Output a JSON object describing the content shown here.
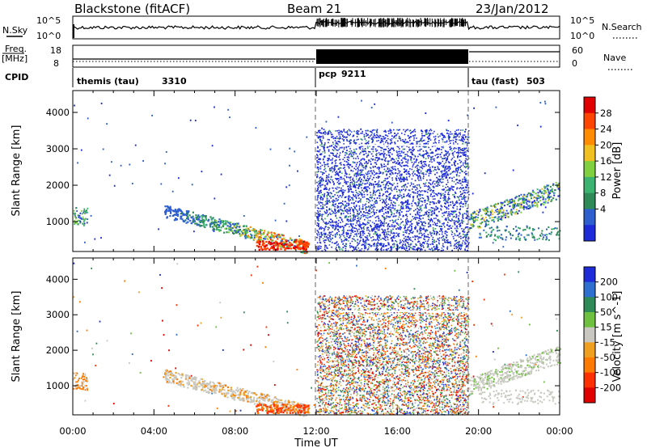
{
  "header": {
    "station": "Blackstone (fitACF)",
    "beam": "Beam 21",
    "date": "23/Jan/2012"
  },
  "panel_labels": {
    "nsky": "N.Sky",
    "nsearch": "N.Search",
    "freq_line1": "Freq.",
    "freq_line2": "[MHz]",
    "nave": "Nave",
    "cpid": "CPID"
  },
  "small_axes": {
    "noise_left_ticks": [
      "10^5",
      "10^0"
    ],
    "noise_right_ticks": [
      "10^5",
      "10^0"
    ],
    "freq_left_ticks": [
      "18",
      "8"
    ],
    "nave_right_ticks": [
      "60",
      "0"
    ]
  },
  "cpid_segments": [
    {
      "name": "themis (tau)",
      "id": "3310",
      "start_hour": 0,
      "end_hour": 12
    },
    {
      "name": "pcp",
      "id": "9211",
      "start_hour": 12,
      "end_hour": 19.5
    },
    {
      "name": "tau (fast)",
      "id": "503",
      "start_hour": 19.5,
      "end_hour": 24
    }
  ],
  "colors": {
    "power_scale": [
      "#1e2bd8",
      "#2f5fcf",
      "#2e8b57",
      "#3cb371",
      "#80d040",
      "#f0c020",
      "#ff8c00",
      "#ff4500",
      "#e00000"
    ],
    "velocity_scale": [
      "#1e2bd8",
      "#2e6fd0",
      "#2e8b57",
      "#70c040",
      "#c8c8c0",
      "#f0a020",
      "#ff7a00",
      "#ff3000",
      "#e00000"
    ]
  },
  "chart_data": [
    {
      "type": "heatmap",
      "title": "Power",
      "ylabel": "Slant Range [km]",
      "xlabel": "Time UT",
      "x_ticks": [
        "00:00",
        "04:00",
        "08:00",
        "12:00",
        "16:00",
        "20:00",
        "00:00"
      ],
      "xlim_hours": [
        0,
        24
      ],
      "y_ticks": [
        1000,
        2000,
        3000,
        4000
      ],
      "ylim_km": [
        180,
        4600
      ],
      "colorbar_label": "Power [dB]",
      "colorbar_ticks": [
        4,
        8,
        12,
        16,
        20,
        24,
        28
      ],
      "scatter_regions": [
        {
          "t_start": 0,
          "t_end": 0.6,
          "r_min": 800,
          "r_max": 1400,
          "level": "strong"
        },
        {
          "t_start": 4.5,
          "t_end": 11.5,
          "r_min": 300,
          "r_max": 1300,
          "level": "strong"
        },
        {
          "t_start": 12,
          "t_end": 19.5,
          "r_min": 180,
          "r_max": 3550,
          "level": "dense"
        },
        {
          "t_start": 19.5,
          "t_end": 24,
          "r_min": 400,
          "r_max": 2100,
          "level": "moderate"
        }
      ]
    },
    {
      "type": "heatmap",
      "title": "Velocity",
      "ylabel": "Slant Range [km]",
      "xlabel": "Time UT",
      "x_ticks": [
        "00:00",
        "04:00",
        "08:00",
        "12:00",
        "16:00",
        "20:00",
        "00:00"
      ],
      "xlim_hours": [
        0,
        24
      ],
      "y_ticks": [
        1000,
        2000,
        3000,
        4000
      ],
      "ylim_km": [
        180,
        4600
      ],
      "colorbar_label": "Velocity [m s^-1]",
      "colorbar_ticks": [
        200,
        100,
        50,
        15,
        -15,
        -50,
        -100,
        -200
      ],
      "scatter_regions": [
        {
          "t_start": 0,
          "t_end": 0.6,
          "r_min": 800,
          "r_max": 1400,
          "level": "strong"
        },
        {
          "t_start": 4.5,
          "t_end": 11.5,
          "r_min": 300,
          "r_max": 1300,
          "level": "ground"
        },
        {
          "t_start": 12,
          "t_end": 19.5,
          "r_min": 180,
          "r_max": 3550,
          "level": "dense"
        },
        {
          "t_start": 19.5,
          "t_end": 24,
          "r_min": 400,
          "r_max": 2100,
          "level": "ground"
        }
      ]
    }
  ]
}
